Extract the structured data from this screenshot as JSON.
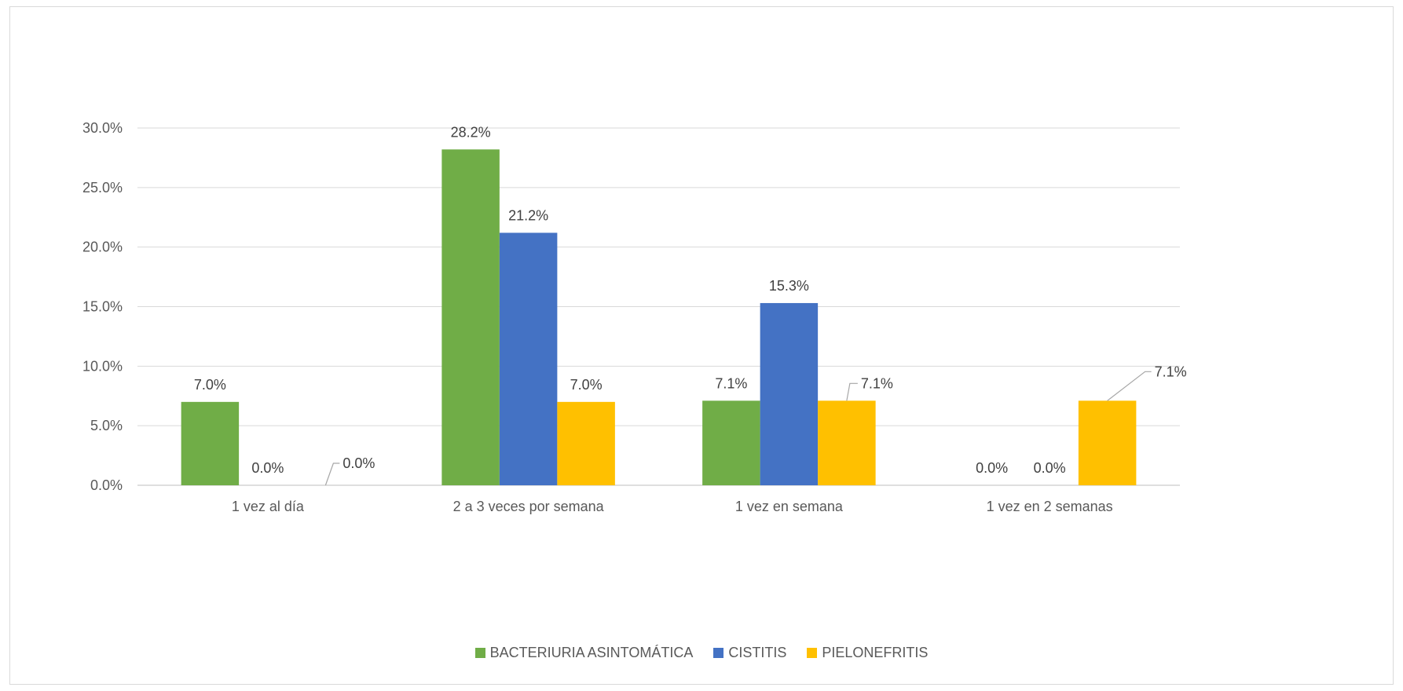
{
  "chart_data": {
    "type": "bar",
    "categories": [
      "1 vez al día",
      "2 a 3 veces por semana",
      "1 vez en semana",
      "1 vez en 2 semanas"
    ],
    "series": [
      {
        "name": "BACTERIURIA ASINTOMÁTICA",
        "color": "#70ad47",
        "values": [
          7.0,
          28.2,
          7.1,
          0.0
        ],
        "labels": [
          "7.0%",
          "28.2%",
          "7.1%",
          "0.0%"
        ]
      },
      {
        "name": "CISTITIS",
        "color": "#4472c4",
        "values": [
          0.0,
          21.2,
          15.3,
          0.0
        ],
        "labels": [
          "0.0%",
          "21.2%",
          "15.3%",
          "0.0%"
        ]
      },
      {
        "name": "PIELONEFRITIS",
        "color": "#ffc000",
        "values": [
          0.0,
          7.0,
          7.1,
          7.1
        ],
        "labels": [
          "0.0%",
          "7.0%",
          "7.1%",
          "7.1%"
        ]
      }
    ],
    "yticks": [
      "0.0%",
      "5.0%",
      "10.0%",
      "15.0%",
      "20.0%",
      "25.0%",
      "30.0%"
    ],
    "ylim": [
      0,
      30
    ],
    "grid": true,
    "legend_position": "bottom",
    "title": "",
    "xlabel": "",
    "ylabel": ""
  }
}
